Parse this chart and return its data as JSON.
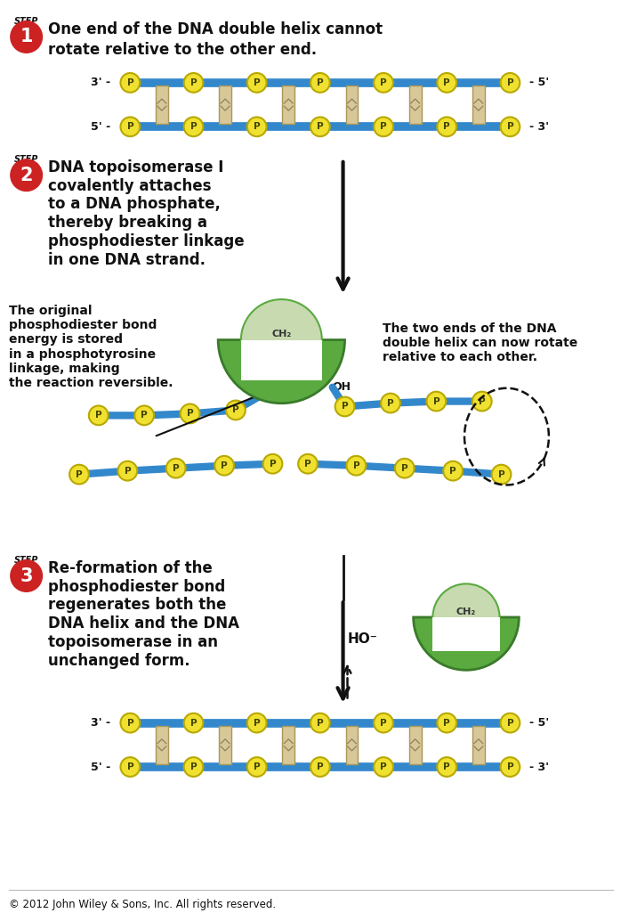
{
  "bg_color": "#ffffff",
  "p_color": "#f0e030",
  "p_edge": "#b8a800",
  "strand_color": "#3388cc",
  "rung_color": "#d8c898",
  "rung_edge": "#a89858",
  "step_red": "#cc2222",
  "step_white": "#ffffff",
  "topo_dark_green": "#3a7a2a",
  "topo_mid_green": "#5aaa40",
  "topo_light": "#c8dab0",
  "black": "#111111",
  "step1_line1": "One end of the DNA double helix cannot",
  "step1_line2": "rotate relative to the other end.",
  "step2_text": "DNA topoisomerase I\ncovalently attaches\nto a DNA phosphate,\nthereby breaking a\nphosphodiester linkage\nin one DNA strand.",
  "step3_text": "Re-formation of the\nphosphodiester bond\nregenerates both the\nDNA helix and the DNA\ntopoisomerase in an\nunchanged form.",
  "text_left": "The original\nphosphodiester bond\nenergy is stored\nin a phosphotyrosine\nlinkage, making\nthe reaction reversible.",
  "text_right": "The two ends of the DNA\ndouble helix can now rotate\nrelative to each other.",
  "copyright": "© 2012 John Wiley & Sons, Inc. All rights reserved."
}
